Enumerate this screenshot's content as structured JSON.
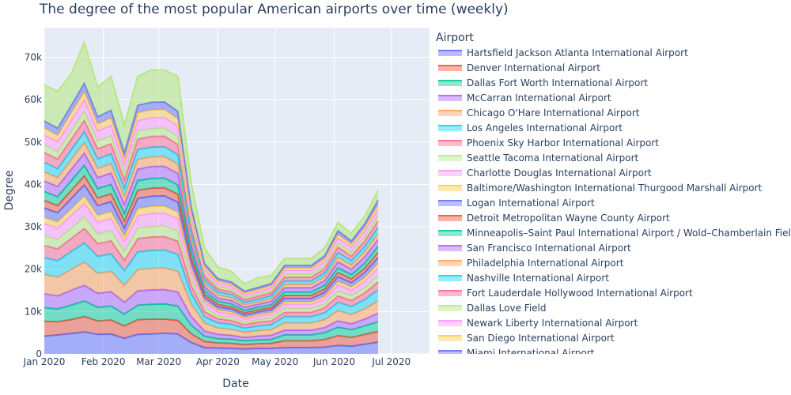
{
  "chart_data": {
    "type": "area",
    "title": "The degree of the most popular American airports over time (weekly)",
    "xlabel": "Date",
    "ylabel": "Degree",
    "legend_title": "Airport",
    "x_ticks": [
      "Jan 2020",
      "Feb 2020",
      "Mar 2020",
      "Apr 2020",
      "May 2020",
      "Jun 2020",
      "Jul 2020"
    ],
    "y_ticks": [
      "0",
      "10k",
      "20k",
      "30k",
      "40k",
      "50k",
      "60k",
      "70k"
    ],
    "ylim": [
      0,
      77000
    ],
    "xlim": [
      "2020-01-01",
      "2020-07-21"
    ],
    "x": [
      "2020-01-01",
      "2020-01-08",
      "2020-01-15",
      "2020-01-22",
      "2020-01-29",
      "2020-02-05",
      "2020-02-12",
      "2020-02-19",
      "2020-02-26",
      "2020-03-04",
      "2020-03-11",
      "2020-03-18",
      "2020-03-25",
      "2020-04-01",
      "2020-04-08",
      "2020-04-15",
      "2020-04-22",
      "2020-04-29",
      "2020-05-06",
      "2020-05-13",
      "2020-05-20",
      "2020-05-27",
      "2020-06-03",
      "2020-06-10",
      "2020-06-17",
      "2020-06-24",
      "2020-07-01",
      "2020-07-08",
      "2020-07-15",
      "2020-07-21"
    ],
    "total": [
      63500,
      62000,
      66000,
      73500,
      63000,
      65500,
      54000,
      65500,
      67000,
      67000,
      65500,
      40500,
      25000,
      20500,
      19500,
      16500,
      18000,
      18500,
      22500,
      22500,
      22500,
      25000,
      31000,
      28500,
      32500,
      38500,
      null,
      null,
      null,
      null
    ],
    "series": [
      {
        "name": "Hartsfield Jackson Atlanta International Airport",
        "color": "#636efa"
      },
      {
        "name": "Denver International Airport",
        "color": "#EF553B"
      },
      {
        "name": "Dallas Fort Worth International Airport",
        "color": "#00cc96"
      },
      {
        "name": "McCarran International Airport",
        "color": "#ab63fa"
      },
      {
        "name": "Chicago O'Hare International Airport",
        "color": "#FFA15A"
      },
      {
        "name": "Los Angeles International Airport",
        "color": "#19d3f3"
      },
      {
        "name": "Phoenix Sky Harbor International Airport",
        "color": "#FF6692"
      },
      {
        "name": "Seattle Tacoma International Airport",
        "color": "#B6E880"
      },
      {
        "name": "Charlotte Douglas International Airport",
        "color": "#FF97FF"
      },
      {
        "name": "Baltimore/Washington International Thurgood Marshall Airport",
        "color": "#FECB52"
      },
      {
        "name": "Logan International Airport",
        "color": "#636efa"
      },
      {
        "name": "Detroit Metropolitan Wayne County Airport",
        "color": "#EF553B"
      },
      {
        "name": "Minneapolis–Saint Paul International Airport / Wold–Chamberlain Field",
        "color": "#00cc96"
      },
      {
        "name": "San Francisco International Airport",
        "color": "#ab63fa"
      },
      {
        "name": "Philadelphia International Airport",
        "color": "#FFA15A"
      },
      {
        "name": "Nashville International Airport",
        "color": "#19d3f3"
      },
      {
        "name": "Fort Lauderdale Hollywood International Airport",
        "color": "#FF6692"
      },
      {
        "name": "Dallas Love Field",
        "color": "#B6E880"
      },
      {
        "name": "Newark Liberty International Airport",
        "color": "#FF97FF"
      },
      {
        "name": "San Diego International Airport",
        "color": "#FECB52"
      },
      {
        "name": "Miami International Airport",
        "color": "#636efa"
      }
    ],
    "stack_boundaries": [
      [
        4200,
        4500,
        4800,
        5200,
        4600,
        4700,
        3700,
        4600,
        4700,
        4900,
        4700,
        2700,
        1500,
        1400,
        1300,
        1200,
        1300,
        1300,
        1500,
        1500,
        1500,
        1600,
        2000,
        1800,
        2300,
        2800
      ],
      [
        7700,
        7600,
        8100,
        8800,
        7800,
        8000,
        6600,
        8100,
        8200,
        8200,
        7900,
        4800,
        2900,
        2600,
        2500,
        2200,
        2400,
        2500,
        3100,
        3100,
        3100,
        3400,
        4300,
        3900,
        4600,
        5300
      ],
      [
        10900,
        10600,
        11500,
        12500,
        11000,
        11300,
        9400,
        11500,
        11700,
        11800,
        11300,
        6800,
        4200,
        3600,
        3500,
        3100,
        3300,
        3400,
        4500,
        4500,
        4500,
        5000,
        6300,
        5700,
        6600,
        7600
      ],
      [
        14200,
        13700,
        15000,
        16200,
        14300,
        14700,
        12200,
        14900,
        15100,
        15200,
        14600,
        8900,
        5400,
        4600,
        4400,
        3900,
        4200,
        4400,
        5600,
        5600,
        5600,
        6200,
        7800,
        7100,
        8200,
        9600
      ],
      [
        18800,
        18100,
        19900,
        21700,
        19000,
        19500,
        16200,
        19900,
        20200,
        20300,
        19500,
        11800,
        7300,
        6100,
        5800,
        5100,
        5500,
        5700,
        7300,
        7300,
        7300,
        8100,
        10200,
        9300,
        10600,
        12500
      ],
      [
        22700,
        22000,
        24100,
        26200,
        23000,
        23600,
        19600,
        24100,
        24400,
        24500,
        23500,
        14300,
        8800,
        7300,
        7000,
        6100,
        6600,
        6900,
        8800,
        8800,
        8800,
        9700,
        12200,
        11200,
        12800,
        15100
      ],
      [
        25600,
        24800,
        27200,
        29600,
        26000,
        26700,
        22100,
        27200,
        27600,
        27700,
        26600,
        16200,
        10000,
        8300,
        7900,
        6900,
        7500,
        7800,
        9800,
        9800,
        9800,
        10900,
        13700,
        12600,
        14400,
        17000
      ],
      [
        27900,
        27000,
        29700,
        32300,
        28300,
        29100,
        24100,
        29700,
        30100,
        30200,
        29000,
        17600,
        10900,
        9000,
        8600,
        7500,
        8100,
        8500,
        10700,
        10700,
        10700,
        11800,
        14900,
        13700,
        15600,
        18500
      ],
      [
        30700,
        29700,
        32600,
        35500,
        31100,
        32000,
        26500,
        32600,
        33100,
        33200,
        31900,
        19400,
        12000,
        9900,
        9400,
        8200,
        8900,
        9300,
        11700,
        11700,
        11700,
        12900,
        16300,
        15000,
        17100,
        20200
      ],
      [
        32200,
        31200,
        34200,
        37300,
        32700,
        33600,
        27800,
        34300,
        34800,
        34900,
        33500,
        20400,
        12600,
        10400,
        9900,
        8600,
        9300,
        9800,
        12300,
        12300,
        12300,
        13600,
        17100,
        15800,
        18000,
        21300
      ],
      [
        34400,
        33300,
        36600,
        39900,
        35000,
        35900,
        29700,
        36700,
        37200,
        37300,
        35800,
        21800,
        13400,
        11100,
        10600,
        9200,
        9900,
        10400,
        13100,
        13100,
        13100,
        14500,
        18200,
        16800,
        19200,
        22700
      ],
      [
        36200,
        35000,
        38500,
        42000,
        36800,
        37800,
        31300,
        38600,
        39100,
        39200,
        37700,
        22900,
        14100,
        11700,
        11100,
        9700,
        10400,
        10900,
        13800,
        13800,
        13800,
        15300,
        19200,
        17700,
        20200,
        23900
      ],
      [
        38300,
        37100,
        40800,
        44500,
        39000,
        40000,
        33100,
        40900,
        41400,
        41500,
        39900,
        24300,
        14900,
        12400,
        11800,
        10300,
        11000,
        11600,
        14600,
        14600,
        14600,
        16200,
        20300,
        18700,
        21400,
        25300
      ],
      [
        40800,
        39500,
        43500,
        47400,
        41600,
        42700,
        35300,
        43600,
        44200,
        44300,
        42600,
        25900,
        15900,
        13200,
        12600,
        11000,
        11700,
        12400,
        15600,
        15600,
        15600,
        17300,
        21700,
        20000,
        22900,
        27000
      ],
      [
        43000,
        41600,
        45800,
        49900,
        43800,
        44900,
        37200,
        45900,
        46500,
        46600,
        44800,
        27200,
        16700,
        13900,
        13300,
        11600,
        12300,
        13000,
        16400,
        16400,
        16400,
        18200,
        22800,
        21000,
        24100,
        28400
      ],
      [
        45200,
        43700,
        48100,
        52400,
        46000,
        47200,
        39100,
        48200,
        48800,
        48900,
        47000,
        28600,
        17500,
        14600,
        14000,
        12200,
        12900,
        13700,
        17200,
        17200,
        17200,
        19100,
        23900,
        22000,
        25300,
        29800
      ],
      [
        47500,
        46000,
        50600,
        55100,
        48400,
        49600,
        41100,
        50700,
        51300,
        51400,
        49400,
        30100,
        18400,
        15300,
        14700,
        12800,
        13600,
        14400,
        18100,
        18100,
        18100,
        20100,
        25200,
        23100,
        26600,
        31400
      ],
      [
        49300,
        47700,
        52500,
        57200,
        50200,
        51500,
        42600,
        52600,
        53200,
        53300,
        51300,
        31200,
        19100,
        15900,
        15300,
        13300,
        14100,
        14900,
        18800,
        18800,
        18800,
        20800,
        26100,
        24000,
        27600,
        32600
      ],
      [
        51600,
        50000,
        55000,
        59900,
        52600,
        53900,
        44600,
        55100,
        55700,
        55800,
        53700,
        32700,
        20000,
        16600,
        16000,
        13900,
        14700,
        15600,
        19700,
        19700,
        19700,
        21800,
        27300,
        25100,
        28900,
        34100
      ],
      [
        53300,
        51600,
        56800,
        61900,
        54300,
        55700,
        46100,
        56900,
        57600,
        57700,
        55500,
        33800,
        20700,
        17200,
        16500,
        14400,
        15200,
        16100,
        20300,
        20300,
        20300,
        22500,
        28200,
        25900,
        29800,
        35200
      ],
      [
        55000,
        53300,
        58600,
        63900,
        56000,
        57500,
        47600,
        58700,
        59400,
        59500,
        57300,
        34900,
        21400,
        17800,
        17000,
        14800,
        15700,
        16600,
        20900,
        20900,
        20900,
        23200,
        29100,
        26700,
        30700,
        36300
      ]
    ]
  }
}
